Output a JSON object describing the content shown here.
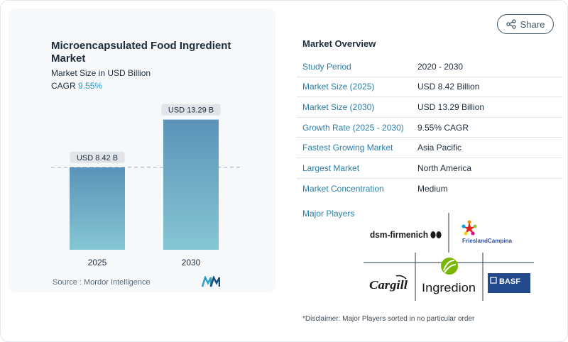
{
  "share": {
    "label": "Share",
    "icon": "share-icon"
  },
  "chart_data": {
    "type": "bar",
    "title": "Microencapsulated Food Ingredient Market",
    "subtitle": "Market Size in USD Billion",
    "cagr_label": "CAGR",
    "cagr_value": "9.55%",
    "categories": [
      "2025",
      "2030"
    ],
    "values": [
      8.42,
      13.29
    ],
    "value_labels": [
      "USD 8.42 B",
      "USD 13.29 B"
    ],
    "bar_color_top": "#5b93b8",
    "bar_color_bottom": "#86c6d4",
    "reference_line": 8.42,
    "grid": false
  },
  "source": "Source :  Mordor Intelligence",
  "overview": {
    "title": "Market Overview",
    "rows": [
      {
        "label": "Study Period",
        "value": "2020 - 2030"
      },
      {
        "label": "Market Size (2025)",
        "value": "USD 8.42 Billion"
      },
      {
        "label": "Market Size (2030)",
        "value": "USD 13.29 Billion"
      },
      {
        "label": "Growth Rate (2025 - 2030)",
        "value": "9.55% CAGR"
      },
      {
        "label": "Fastest Growing Market",
        "value": "Asia Pacific"
      },
      {
        "label": "Largest Market",
        "value": "North America"
      },
      {
        "label": "Market Concentration",
        "value": "Medium"
      }
    ]
  },
  "major_players": {
    "title": "Major Players",
    "logos": [
      "dsm-firmenich",
      "FrieslandCampina",
      "Cargill",
      "Ingredion",
      "BASF"
    ]
  },
  "disclaimer": "*Disclaimer: Major Players sorted in no particular order",
  "colors": {
    "accent": "#2a7fa7",
    "text": "#1f2d3d",
    "cagr": "#2e9ec7"
  }
}
